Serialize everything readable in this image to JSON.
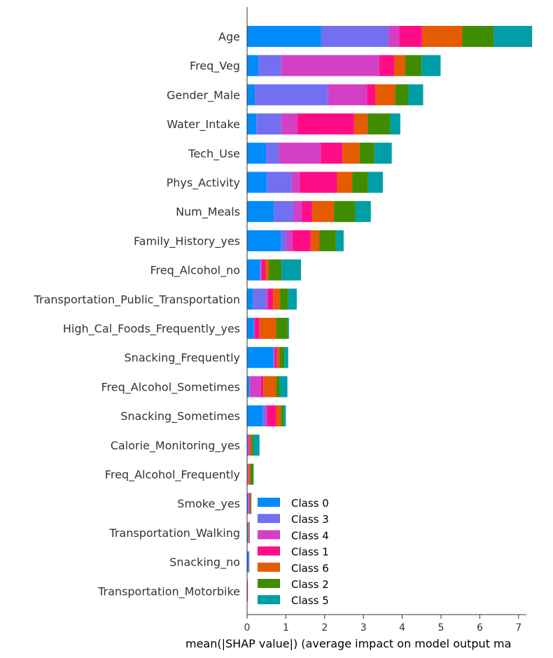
{
  "chart_data": {
    "type": "bar",
    "orientation": "horizontal",
    "stacked": true,
    "xlabel": "mean(|SHAP value|) (average impact on model output ma",
    "xlim": [
      0,
      7.7
    ],
    "xticks": [
      0,
      1,
      2,
      3,
      4,
      5,
      6,
      7
    ],
    "grid": false,
    "legend_placement": "lower-right",
    "categories": [
      "Age",
      "Freq_Veg",
      "Gender_Male",
      "Water_Intake",
      "Tech_Use",
      "Phys_Activity",
      "Num_Meals",
      "Family_History_yes",
      "Freq_Alcohol_no",
      "Transportation_Public_Transportation",
      "High_Cal_Foods_Frequently_yes",
      "Snacking_Frequently",
      "Freq_Alcohol_Sometimes",
      "Snacking_Sometimes",
      "Calorie_Monitoring_yes",
      "Freq_Alcohol_Frequently",
      "Smoke_yes",
      "Transportation_Walking",
      "Snacking_no",
      "Transportation_Motorbike"
    ],
    "series": [
      {
        "name": "Class 0",
        "color": "#008bfb",
        "values": [
          1.91,
          0.29,
          0.2,
          0.24,
          0.49,
          0.51,
          0.69,
          0.87,
          0.33,
          0.15,
          0.17,
          0.68,
          0.06,
          0.4,
          0.02,
          0.01,
          0.02,
          0.02,
          0.04,
          0.01
        ]
      },
      {
        "name": "Class 3",
        "color": "#7270f0",
        "values": [
          1.73,
          0.59,
          1.88,
          0.64,
          0.33,
          0.63,
          0.51,
          0.14,
          0.02,
          0.35,
          0.01,
          0.01,
          0.01,
          0.09,
          0.01,
          0.01,
          0.02,
          0.01,
          0.01,
          0.0
        ]
      },
      {
        "name": "Class 4",
        "color": "#d340c5",
        "values": [
          0.28,
          2.53,
          1.01,
          0.42,
          1.08,
          0.21,
          0.21,
          0.16,
          0.03,
          0.03,
          0.02,
          0.02,
          0.29,
          0.02,
          0.01,
          0.01,
          0.02,
          0.01,
          0.01,
          0.0
        ]
      },
      {
        "name": "Class 1",
        "color": "#ff0d87",
        "values": [
          0.59,
          0.38,
          0.22,
          1.46,
          0.56,
          0.97,
          0.26,
          0.47,
          0.09,
          0.14,
          0.12,
          0.06,
          0.06,
          0.24,
          0.03,
          0.01,
          0.02,
          0.01,
          0.0,
          0.01
        ]
      },
      {
        "name": "Class 6",
        "color": "#e55b02",
        "values": [
          1.04,
          0.29,
          0.51,
          0.35,
          0.44,
          0.39,
          0.57,
          0.22,
          0.09,
          0.18,
          0.43,
          0.07,
          0.33,
          0.12,
          0.04,
          0.05,
          0.01,
          0.01,
          0.0,
          0.0
        ]
      },
      {
        "name": "Class 2",
        "color": "#3f8c00",
        "values": [
          0.81,
          0.42,
          0.34,
          0.58,
          0.38,
          0.41,
          0.55,
          0.43,
          0.33,
          0.21,
          0.3,
          0.12,
          0.09,
          0.07,
          0.05,
          0.07,
          0.02,
          0.01,
          0.0,
          0.0
        ]
      },
      {
        "name": "Class 5",
        "color": "#009ea7",
        "values": [
          0.99,
          0.49,
          0.38,
          0.26,
          0.45,
          0.38,
          0.4,
          0.2,
          0.5,
          0.22,
          0.03,
          0.1,
          0.2,
          0.06,
          0.16,
          0.01,
          0.0,
          0.0,
          0.0,
          0.0
        ]
      }
    ]
  }
}
